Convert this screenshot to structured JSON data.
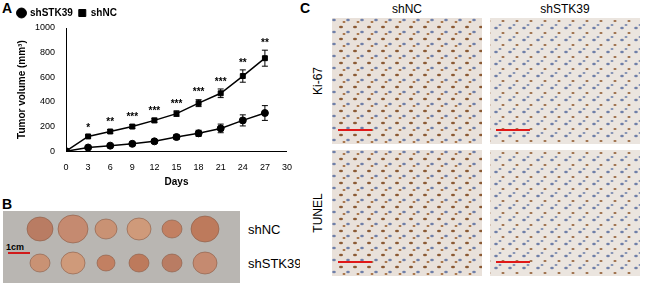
{
  "chart_data": {
    "type": "line",
    "panel_label": "A",
    "x": [
      0,
      3,
      6,
      9,
      12,
      15,
      18,
      21,
      24,
      27
    ],
    "xlim": [
      0,
      30
    ],
    "xticks": [
      0,
      3,
      6,
      9,
      12,
      15,
      18,
      21,
      24,
      27,
      30
    ],
    "ylim": [
      0,
      1000
    ],
    "yticks": [
      0,
      200,
      400,
      600,
      800,
      1000
    ],
    "x_label": "Days",
    "y_label": "Tumor volume (mm³)",
    "grid": false,
    "legend": "upper left",
    "series": [
      {
        "name": "shSTK39",
        "color": "#000000",
        "marker": "circle",
        "line_style": "solid",
        "values": [
          0,
          30,
          45,
          60,
          80,
          115,
          145,
          185,
          250,
          310
        ],
        "errors": [
          0,
          8,
          10,
          10,
          15,
          20,
          25,
          35,
          45,
          60
        ]
      },
      {
        "name": "shNC",
        "color": "#000000",
        "marker": "square",
        "line_style": "solid",
        "values": [
          0,
          120,
          160,
          200,
          250,
          305,
          390,
          470,
          610,
          755
        ],
        "errors": [
          0,
          12,
          15,
          15,
          18,
          22,
          28,
          35,
          50,
          65
        ]
      }
    ],
    "annotations": [
      {
        "x": 3,
        "text": "*"
      },
      {
        "x": 6,
        "text": "**"
      },
      {
        "x": 9,
        "text": "***"
      },
      {
        "x": 12,
        "text": "***"
      },
      {
        "x": 15,
        "text": "***"
      },
      {
        "x": 18,
        "text": "***"
      },
      {
        "x": 21,
        "text": "***"
      },
      {
        "x": 24,
        "text": "**"
      },
      {
        "x": 27,
        "text": "**"
      }
    ]
  },
  "panel_b": {
    "label": "B",
    "rows": [
      "shNC",
      "shSTK39"
    ],
    "scale_bar": "1cm"
  },
  "panel_c": {
    "label": "C",
    "columns": [
      "shNC",
      "shSTK39"
    ],
    "rows": [
      "Ki-67",
      "TUNEL"
    ]
  }
}
